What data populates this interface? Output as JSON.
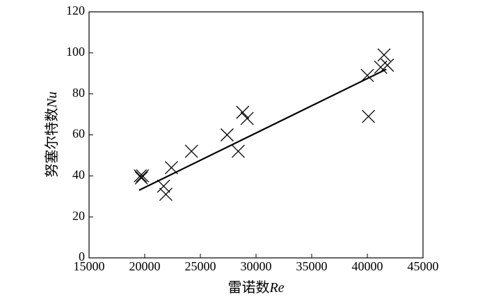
{
  "chart_data": {
    "type": "scatter",
    "xlabel": "雷诺数",
    "xlabel_symbol": "Re",
    "ylabel": "努塞尔特数",
    "ylabel_symbol": "Nu",
    "x": [
      19600,
      19700,
      19800,
      21700,
      21900,
      22400,
      24200,
      27400,
      28400,
      28800,
      29200,
      40000,
      40100,
      41200,
      41500,
      41800
    ],
    "values": [
      40,
      39,
      40,
      35,
      31,
      44,
      52,
      60,
      52,
      71,
      68,
      89,
      69,
      93,
      99,
      94
    ],
    "color": "#000000",
    "fit": {
      "x": [
        19500,
        41700
      ],
      "values": [
        33,
        92
      ]
    },
    "xlim": [
      15000,
      45000
    ],
    "xticks": [
      15000,
      20000,
      25000,
      30000,
      35000,
      40000,
      45000
    ],
    "ylim": [
      0,
      120
    ],
    "yticks": [
      0,
      20,
      40,
      60,
      80,
      100,
      120
    ]
  }
}
